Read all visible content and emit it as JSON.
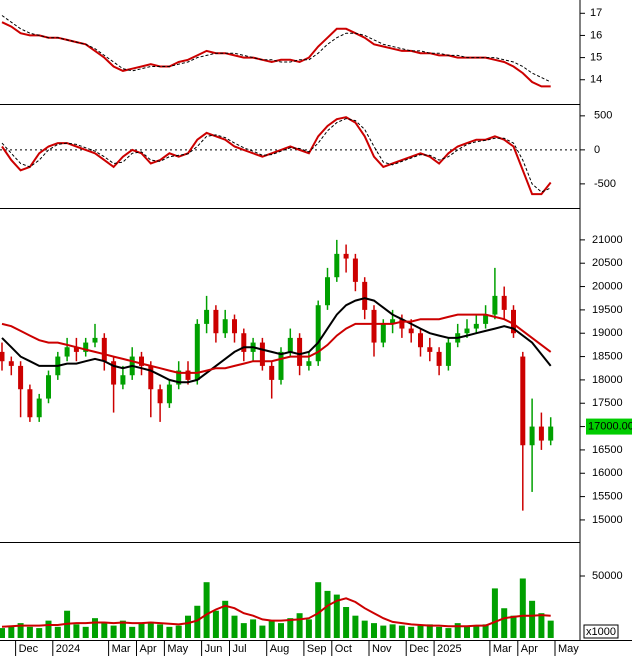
{
  "chart_data": [
    {
      "type": "line",
      "ylim": [
        12.95,
        17.6
      ],
      "yticks": [
        14,
        15,
        16,
        17
      ],
      "series": [
        {
          "color": "#cc0000",
          "values": [
            16.6,
            16.4,
            16.1,
            16.0,
            16.0,
            15.9,
            15.9,
            15.8,
            15.7,
            15.6,
            15.3,
            15.0,
            14.6,
            14.4,
            14.5,
            14.6,
            14.7,
            14.6,
            14.6,
            14.8,
            14.9,
            15.1,
            15.3,
            15.2,
            15.2,
            15.1,
            15.0,
            15.0,
            14.9,
            14.8,
            14.9,
            14.9,
            14.8,
            15.0,
            15.5,
            15.9,
            16.3,
            16.3,
            16.1,
            15.9,
            15.6,
            15.5,
            15.4,
            15.3,
            15.3,
            15.2,
            15.2,
            15.1,
            15.1,
            15.0,
            15.0,
            15.0,
            15.0,
            14.9,
            14.8,
            14.6,
            14.3,
            13.9,
            13.7,
            13.7,
            null
          ]
        },
        {
          "color": "#000000",
          "dash": true,
          "values": [
            16.9,
            16.6,
            16.3,
            16.1,
            16.0,
            15.9,
            15.9,
            15.8,
            15.7,
            15.6,
            15.4,
            15.1,
            14.8,
            14.5,
            14.4,
            14.5,
            14.6,
            14.6,
            14.6,
            14.7,
            14.8,
            15.0,
            15.1,
            15.2,
            15.2,
            15.2,
            15.1,
            15.0,
            14.9,
            14.9,
            14.8,
            14.8,
            14.9,
            14.9,
            15.2,
            15.6,
            15.9,
            16.1,
            16.1,
            16.0,
            15.8,
            15.6,
            15.5,
            15.4,
            15.3,
            15.3,
            15.2,
            15.2,
            15.1,
            15.1,
            15.0,
            15.0,
            15.0,
            15.0,
            14.9,
            14.8,
            14.6,
            14.3,
            14.1,
            13.9,
            null
          ]
        }
      ]
    },
    {
      "type": "line",
      "ylim": [
        -840,
        630
      ],
      "yticks": [
        -500,
        0,
        500
      ],
      "zero_line": true,
      "series": [
        {
          "color": "#cc0000",
          "values": [
            50,
            -150,
            -300,
            -250,
            -50,
            50,
            100,
            100,
            50,
            0,
            -50,
            -150,
            -250,
            -100,
            0,
            -50,
            -200,
            -150,
            -50,
            -100,
            -50,
            150,
            250,
            200,
            150,
            50,
            0,
            -50,
            -100,
            -50,
            0,
            50,
            0,
            -50,
            200,
            350,
            450,
            480,
            400,
            200,
            -100,
            -250,
            -200,
            -150,
            -100,
            -50,
            -100,
            -200,
            -50,
            50,
            100,
            150,
            150,
            200,
            150,
            50,
            -300,
            -650,
            -650,
            -480,
            null
          ]
        },
        {
          "color": "#000000",
          "dash": true,
          "values": [
            100,
            -50,
            -200,
            -250,
            -150,
            0,
            80,
            100,
            80,
            30,
            -20,
            -100,
            -200,
            -180,
            -50,
            -30,
            -150,
            -170,
            -100,
            -80,
            -60,
            50,
            200,
            220,
            180,
            100,
            30,
            -20,
            -80,
            -70,
            -20,
            30,
            20,
            -30,
            100,
            280,
            400,
            460,
            430,
            300,
            50,
            -180,
            -220,
            -170,
            -120,
            -70,
            -80,
            -150,
            -100,
            0,
            80,
            120,
            140,
            170,
            170,
            100,
            -150,
            -500,
            -620,
            -560,
            null
          ]
        }
      ]
    },
    {
      "type": "candlestick",
      "ylim": [
        14570,
        21640
      ],
      "yticks": [
        15000,
        15500,
        16000,
        16500,
        17000,
        17500,
        18000,
        18500,
        19000,
        19500,
        20000,
        20500,
        21000
      ],
      "up_color": "#00a000",
      "down_color": "#cc0000",
      "open": [
        18600,
        18400,
        18300,
        17800,
        17200,
        17600,
        18100,
        18500,
        18700,
        18600,
        18800,
        18900,
        18400,
        17900,
        18100,
        18500,
        18300,
        17800,
        17500,
        17900,
        18200,
        18000,
        19200,
        19500,
        19000,
        19300,
        19000,
        18600,
        18800,
        18300,
        18000,
        18600,
        18900,
        18300,
        18400,
        19600,
        20200,
        20700,
        20600,
        20100,
        19500,
        18800,
        19200,
        19300,
        19100,
        19000,
        18700,
        18600,
        18300,
        18800,
        19000,
        19100,
        19200,
        19400,
        19800,
        19500,
        18500,
        16600,
        17000,
        16700,
        null
      ],
      "high": [
        18800,
        18500,
        18400,
        17900,
        17700,
        18200,
        18600,
        18900,
        18900,
        18900,
        19200,
        19000,
        18500,
        18300,
        18700,
        18600,
        18400,
        17900,
        18000,
        18400,
        18400,
        19300,
        19800,
        19600,
        19500,
        19400,
        19100,
        18900,
        18900,
        18400,
        18700,
        19100,
        19000,
        18600,
        19700,
        20400,
        21000,
        20900,
        20700,
        20200,
        19600,
        19300,
        19500,
        19400,
        19300,
        19100,
        18900,
        18700,
        18900,
        19200,
        19300,
        19400,
        19600,
        20400,
        20000,
        19600,
        18600,
        17600,
        17300,
        17200,
        null
      ],
      "low": [
        18200,
        18100,
        17200,
        17100,
        17100,
        17500,
        18000,
        18400,
        18400,
        18500,
        18700,
        18200,
        17300,
        17800,
        18000,
        18100,
        17200,
        17100,
        17400,
        17800,
        17900,
        17900,
        19000,
        18800,
        18900,
        18800,
        18400,
        18400,
        18200,
        17600,
        17900,
        18500,
        18100,
        18200,
        18300,
        19500,
        20100,
        20300,
        19900,
        19300,
        18500,
        18700,
        19000,
        18900,
        18800,
        18500,
        18400,
        18100,
        18200,
        18700,
        18900,
        19000,
        19100,
        19300,
        19300,
        18900,
        15200,
        15600,
        16500,
        16600,
        null
      ],
      "close": [
        18400,
        18300,
        17800,
        17200,
        17600,
        18100,
        18500,
        18700,
        18600,
        18800,
        18900,
        18400,
        17900,
        18100,
        18500,
        18300,
        17800,
        17500,
        17900,
        18200,
        18000,
        19200,
        19500,
        19000,
        19300,
        19000,
        18600,
        18800,
        18300,
        18000,
        18600,
        18900,
        18300,
        18400,
        19600,
        20200,
        20700,
        20600,
        20100,
        19500,
        18800,
        19200,
        19300,
        19100,
        19000,
        18700,
        18600,
        18300,
        18800,
        19000,
        19100,
        19200,
        19400,
        19800,
        19500,
        19000,
        16600,
        17000,
        16700,
        17000,
        null
      ],
      "series": [
        {
          "color": "#000000",
          "values": [
            18900,
            18700,
            18500,
            18400,
            18300,
            18300,
            18300,
            18350,
            18350,
            18400,
            18450,
            18400,
            18300,
            18250,
            18300,
            18250,
            18200,
            18100,
            18000,
            17950,
            17950,
            18000,
            18150,
            18300,
            18450,
            18600,
            18700,
            18700,
            18650,
            18600,
            18550,
            18600,
            18550,
            18600,
            18800,
            19100,
            19400,
            19600,
            19700,
            19750,
            19700,
            19550,
            19400,
            19300,
            19200,
            19100,
            19000,
            18950,
            18900,
            18900,
            18950,
            19000,
            19050,
            19100,
            19150,
            19100,
            18950,
            18800,
            18550,
            18300,
            null
          ]
        },
        {
          "color": "#cc0000",
          "values": [
            19200,
            19150,
            19050,
            18950,
            18850,
            18800,
            18800,
            18750,
            18700,
            18650,
            18600,
            18550,
            18500,
            18450,
            18400,
            18350,
            18300,
            18250,
            18200,
            18150,
            18150,
            18150,
            18200,
            18250,
            18250,
            18300,
            18350,
            18400,
            18400,
            18400,
            18450,
            18500,
            18500,
            18500,
            18600,
            18750,
            18950,
            19100,
            19200,
            19200,
            19200,
            19200,
            19200,
            19250,
            19250,
            19300,
            19300,
            19300,
            19350,
            19400,
            19400,
            19400,
            19400,
            19350,
            19300,
            19200,
            19050,
            18900,
            18750,
            18600,
            null
          ]
        }
      ],
      "last_price": {
        "value": 17000,
        "label": "17000.00"
      }
    },
    {
      "type": "bar",
      "ylim": [
        0,
        75000
      ],
      "yticks": [
        50000
      ],
      "color": "#00a000",
      "unit_label": "x1000",
      "categories": [
        null,
        null,
        "Dec",
        null,
        null,
        null,
        "2024",
        null,
        null,
        null,
        null,
        null,
        "Mar",
        null,
        null,
        "Apr",
        null,
        null,
        "May",
        null,
        null,
        null,
        "Jun",
        null,
        null,
        "Jul",
        null,
        null,
        null,
        "Aug",
        null,
        null,
        null,
        "Sep",
        null,
        null,
        "Oct",
        null,
        null,
        null,
        "Nov",
        null,
        null,
        null,
        "Dec",
        null,
        null,
        "2025",
        null,
        null,
        null,
        null,
        null,
        "Mar",
        null,
        null,
        "Apr",
        null,
        null,
        null,
        "May"
      ],
      "values": [
        8000,
        10000,
        12000,
        9000,
        8000,
        14000,
        9000,
        22000,
        11000,
        9000,
        16000,
        12000,
        10000,
        14000,
        9000,
        12000,
        13000,
        11000,
        9000,
        10000,
        18000,
        26000,
        45000,
        22000,
        30000,
        18000,
        12000,
        15000,
        10000,
        14000,
        12000,
        16000,
        20000,
        15000,
        45000,
        38000,
        35000,
        25000,
        18000,
        14000,
        12000,
        10000,
        11000,
        10000,
        9000,
        10000,
        11000,
        9000,
        8000,
        12000,
        9000,
        10000,
        11000,
        40000,
        24000,
        18000,
        48000,
        30000,
        20000,
        14000,
        null
      ],
      "series": [
        {
          "color": "#cc0000",
          "values": [
            9000,
            9500,
            10000,
            10000,
            10000,
            10500,
            10500,
            11500,
            12000,
            12000,
            12500,
            12500,
            12000,
            12500,
            12000,
            12000,
            12500,
            12000,
            11500,
            11000,
            12000,
            14000,
            19000,
            23000,
            26000,
            24000,
            20000,
            18000,
            15000,
            14000,
            14000,
            14500,
            15000,
            16000,
            20000,
            26000,
            30000,
            32000,
            29000,
            24000,
            20000,
            16000,
            13000,
            12000,
            11000,
            10500,
            10000,
            10000,
            9500,
            9500,
            9500,
            10000,
            10000,
            13000,
            16000,
            17000,
            18000,
            18000,
            18500,
            18000,
            null
          ]
        }
      ]
    }
  ]
}
